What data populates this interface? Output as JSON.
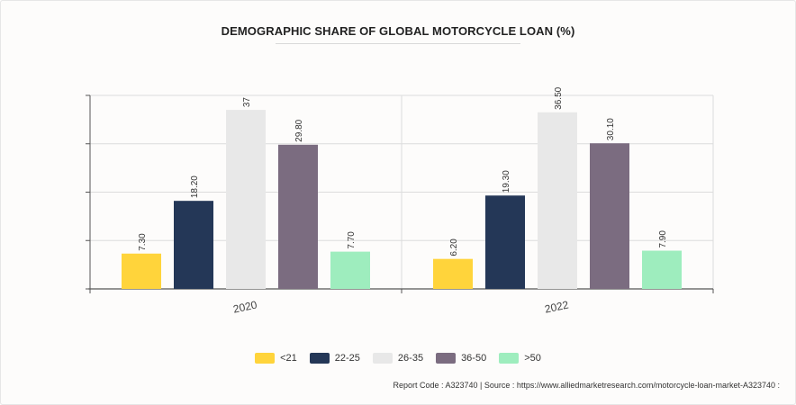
{
  "footer": {
    "text": "Report Code : A323740  |  Source : https://www.alliedmarketresearch.com/motorcycle-loan-market-A323740 :"
  },
  "chart_data": {
    "type": "bar",
    "title": "DEMOGRAPHIC SHARE OF GLOBAL MOTORCYCLE LOAN (%)",
    "categories": [
      "2020",
      "2022"
    ],
    "ylim": [
      0,
      40
    ],
    "grid": true,
    "legend_placement": "bottom",
    "series": [
      {
        "name": "<21",
        "color": "#FFD43B",
        "values": [
          7.3,
          6.2
        ],
        "labels": [
          "7.30",
          "6.20"
        ]
      },
      {
        "name": "22-25",
        "color": "#243757",
        "values": [
          18.2,
          19.3
        ],
        "labels": [
          "18.20",
          "19.30"
        ]
      },
      {
        "name": "26-35",
        "color": "#E8E8E8",
        "values": [
          37,
          36.5
        ],
        "labels": [
          "37",
          "36.50"
        ]
      },
      {
        "name": "36-50",
        "color": "#7B6C80",
        "values": [
          29.8,
          30.1
        ],
        "labels": [
          "29.80",
          "30.10"
        ]
      },
      {
        "name": ">50",
        "color": "#9EEDBE",
        "values": [
          7.7,
          7.9
        ],
        "labels": [
          "7.70",
          "7.90"
        ]
      }
    ]
  }
}
